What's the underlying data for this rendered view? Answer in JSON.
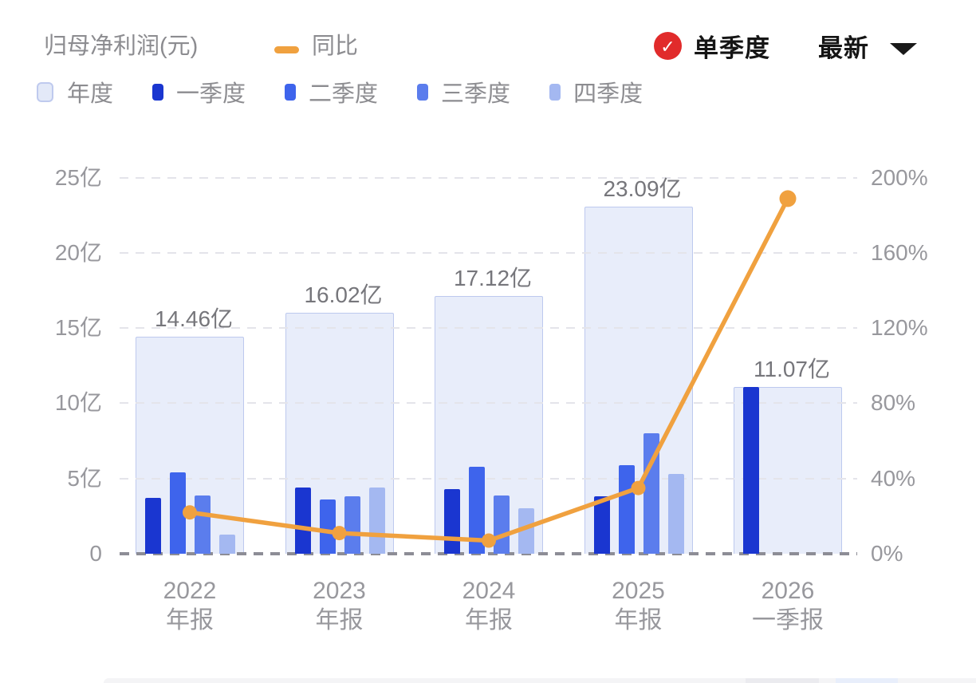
{
  "header": {
    "title": "归母净利润(元)",
    "line_legend_label": "同比",
    "quarter_toggle_label": "单季度",
    "latest_label": "最新",
    "check_glyph": "✓"
  },
  "legend": {
    "items": [
      {
        "id": "annual",
        "label": "年度",
        "color": "#e3e9f8"
      },
      {
        "id": "q1",
        "label": "一季度",
        "color": "#1a36d0"
      },
      {
        "id": "q2",
        "label": "二季度",
        "color": "#3e64ec"
      },
      {
        "id": "q3",
        "label": "三季度",
        "color": "#5b7ded"
      },
      {
        "id": "q4",
        "label": "四季度",
        "color": "#a4b8f1"
      }
    ]
  },
  "axes": {
    "left_ticks": [
      "25亿",
      "20亿",
      "15亿",
      "10亿",
      "5亿",
      "0"
    ],
    "right_ticks": [
      "200%",
      "160%",
      "120%",
      "80%",
      "40%",
      "0%"
    ],
    "left_max_yi": 25,
    "right_max_pct": 200,
    "grid": "dashed horizontal"
  },
  "chart_data": {
    "type": "bar+line (dual axis)",
    "title": "归母净利润(元)",
    "categories": [
      "2022 年报",
      "2023 年报",
      "2024 年报",
      "2025 年报",
      "2026 一季报"
    ],
    "x_labels": [
      [
        "2022",
        "年报"
      ],
      [
        "2023",
        "年报"
      ],
      [
        "2024",
        "年报"
      ],
      [
        "2025",
        "年报"
      ],
      [
        "2026",
        "一季报"
      ]
    ],
    "annual": {
      "name": "年度",
      "values_yi": [
        14.46,
        16.02,
        17.12,
        23.09,
        11.07
      ],
      "labels": [
        "14.46亿",
        "16.02亿",
        "17.12亿",
        "23.09亿",
        "11.07亿"
      ]
    },
    "quarter_series": [
      {
        "name": "一季度",
        "values_yi": [
          3.7,
          4.4,
          4.3,
          3.8,
          11.07
        ]
      },
      {
        "name": "二季度",
        "values_yi": [
          5.4,
          3.6,
          5.8,
          5.9,
          null
        ]
      },
      {
        "name": "三季度",
        "values_yi": [
          3.9,
          3.8,
          3.9,
          8.0,
          null
        ]
      },
      {
        "name": "四季度",
        "values_yi": [
          1.3,
          4.4,
          3.0,
          5.3,
          null
        ]
      }
    ],
    "line": {
      "name": "同比",
      "values_pct": [
        22,
        11,
        7,
        35,
        189
      ],
      "axis": "right"
    },
    "ylim_left_yi": [
      0,
      25
    ],
    "ylim_right_pct": [
      0,
      200
    ],
    "legend_position": "top-left",
    "grid_on": true
  },
  "colors": {
    "annual_fill": "#e8edfa",
    "annual_border": "#bdc9ee",
    "q1": "#1a36d0",
    "q2": "#3e64ec",
    "q3": "#5b7ded",
    "q4": "#a4b8f1",
    "line_orange": "#f0a13f",
    "check_red": "#e12b2b",
    "axis_text": "#98989d",
    "title_text": "#8c8c90",
    "value_text": "#76767b",
    "grid_light": "#e4e4ea",
    "grid_base": "#8d8d96"
  }
}
